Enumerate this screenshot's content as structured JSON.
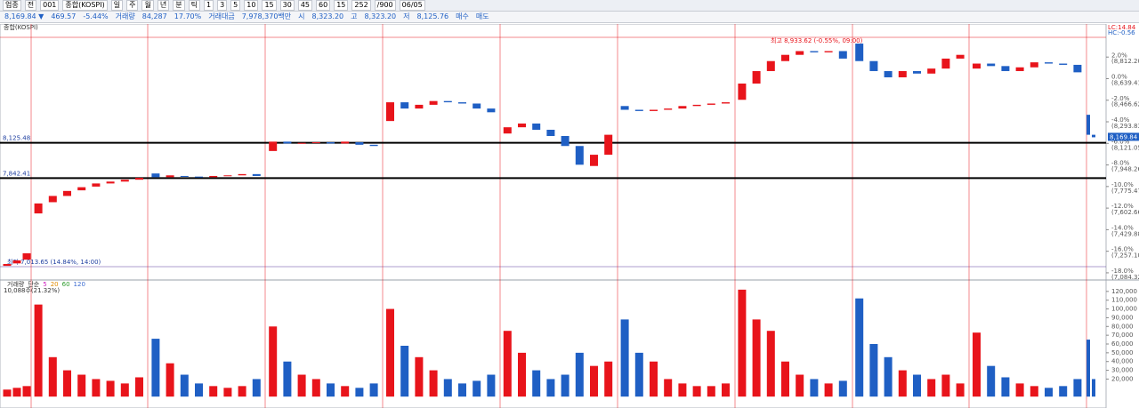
{
  "toolbar": {
    "row1": [
      "업종",
      "전",
      "001",
      "종합(KOSPI)",
      "일",
      "주",
      "월",
      "년",
      "분",
      "틱",
      "1",
      "3",
      "5",
      "10",
      "15",
      "30",
      "45",
      "60",
      "15",
      "252",
      "/900",
      "06/05"
    ],
    "row2": [
      "8,169.84 ▼",
      "469.57",
      "-5.44%",
      "거래량",
      "84,287",
      "17.70%",
      "거래대금",
      "7,978,370백만",
      "시",
      "8,323.20",
      "고",
      "8,323.20",
      "저",
      "8,125.76",
      "매수",
      "매도"
    ]
  },
  "chart_data": {
    "type": "candlestick",
    "title": "종합(KOSPI)",
    "up_color": "#e8141b",
    "down_color": "#1f5fc4",
    "open": [
      7140,
      7160,
      7190,
      7560,
      7650,
      7700,
      7745,
      7775,
      7800,
      7815,
      7830,
      7880,
      7850,
      7860,
      7855,
      7850,
      7860,
      7865,
      7875,
      8060,
      8135,
      8120,
      8125,
      8130,
      8120,
      8130,
      8110,
      8300,
      8450,
      8400,
      8430,
      8460,
      8450,
      8440,
      8400,
      8200,
      8250,
      8280,
      8230,
      8180,
      8100,
      7940,
      8030,
      8420,
      8390,
      8380,
      8390,
      8400,
      8420,
      8430,
      8440,
      8470,
      8600,
      8700,
      8780,
      8830,
      8860,
      8850,
      8860,
      8920,
      8780,
      8700,
      8650,
      8700,
      8680,
      8720,
      8800,
      8720,
      8760,
      8740,
      8700,
      8730,
      8770,
      8760,
      8750,
      8350,
      8190
    ],
    "close": [
      7155,
      7184,
      7241,
      7640,
      7700,
      7740,
      7770,
      7800,
      7815,
      7830,
      7845,
      7850,
      7865,
      7855,
      7850,
      7860,
      7865,
      7875,
      7860,
      8135,
      8120,
      8125,
      8130,
      8120,
      8135,
      8110,
      8100,
      8450,
      8400,
      8430,
      8460,
      8450,
      8440,
      8400,
      8370,
      8250,
      8280,
      8230,
      8180,
      8100,
      7950,
      8030,
      8190,
      8390,
      8380,
      8390,
      8400,
      8420,
      8430,
      8440,
      8450,
      8600,
      8700,
      8780,
      8830,
      8860,
      8850,
      8860,
      8800,
      8780,
      8700,
      8650,
      8700,
      8680,
      8720,
      8800,
      8830,
      8760,
      8740,
      8700,
      8730,
      8770,
      8760,
      8750,
      8690,
      8190,
      8169.84
    ],
    "last_label": "8,169.84",
    "ylim": [
      7034,
      9077
    ],
    "yticks": [
      {
        "value": 7084.32,
        "label": "(7,084.32)"
      },
      {
        "value": 7257.1,
        "label": "(7,257.10)"
      },
      {
        "value": 7429.88,
        "label": "(7,429.88)"
      },
      {
        "value": 7602.66,
        "label": "(7,602.66)"
      },
      {
        "value": 7775.47,
        "label": "(7,775.47)"
      },
      {
        "value": 7948.26,
        "label": "(7,948.26)"
      },
      {
        "value": 8121.05,
        "label": "(8,121.05)"
      },
      {
        "value": 8293.83,
        "label": "(8,293.83)"
      },
      {
        "value": 8466.62,
        "label": "(8,466.62)"
      },
      {
        "value": 8639.41,
        "label": "(8,639.41)"
      },
      {
        "value": 8812.2,
        "label": "(8,812.20)"
      }
    ],
    "y2lim": [
      -18.58,
      5.07
    ],
    "y2ticks": [
      {
        "value": -18,
        "label": "-18.0%"
      },
      {
        "value": -16,
        "label": "-16.0%"
      },
      {
        "value": -14,
        "label": "-14.0%"
      },
      {
        "value": -12,
        "label": "-12.0%"
      },
      {
        "value": -10,
        "label": "-10.0%"
      },
      {
        "value": -8,
        "label": "-8.0%"
      },
      {
        "value": -6,
        "label": "-6.0%"
      },
      {
        "value": -4,
        "label": "-4.0%"
      },
      {
        "value": -2,
        "label": "-2.0%"
      },
      {
        "value": 0,
        "label": "0.0%"
      },
      {
        "value": 2,
        "label": "2.0%"
      }
    ],
    "levels": [
      {
        "value": 8125.48,
        "label": "8,125.48"
      },
      {
        "value": 7842.41,
        "label": "7,842.41"
      }
    ],
    "annotations": [
      "최고 8,933.62 (-0.55%, 09:00)",
      "최저 7,013.65 (14.84%, 14:00)",
      "LC:14.84",
      "HC:-0.56"
    ],
    "volume": {
      "legend": [
        "거래량",
        "단순",
        "5",
        "20",
        "60",
        "120"
      ],
      "last": "10,088주(21.32%)",
      "values": [
        8000,
        10000,
        12000,
        105000,
        45000,
        30000,
        25000,
        20000,
        18000,
        15000,
        22000,
        66000,
        38000,
        25000,
        15000,
        12000,
        10000,
        12000,
        20000,
        80000,
        40000,
        25000,
        20000,
        15000,
        12000,
        10000,
        15000,
        100000,
        58000,
        45000,
        30000,
        20000,
        15000,
        18000,
        25000,
        75000,
        50000,
        30000,
        20000,
        25000,
        50000,
        35000,
        40000,
        88000,
        50000,
        40000,
        20000,
        15000,
        12000,
        12000,
        15000,
        122000,
        88000,
        75000,
        40000,
        25000,
        20000,
        15000,
        18000,
        112000,
        60000,
        45000,
        30000,
        25000,
        20000,
        25000,
        15000,
        73000,
        35000,
        22000,
        15000,
        12000,
        10000,
        12000,
        20000,
        65000,
        20000
      ],
      "ylim": [
        -13000,
        132000
      ],
      "yticks": [
        {
          "value": 20000,
          "label": "20,000"
        },
        {
          "value": 30000,
          "label": "30,000"
        },
        {
          "value": 40000,
          "label": "40,000"
        },
        {
          "value": 50000,
          "label": "50,000"
        },
        {
          "value": 60000,
          "label": "60,000"
        },
        {
          "value": 70000,
          "label": "70,000"
        },
        {
          "value": 80000,
          "label": "80,000"
        },
        {
          "value": 90000,
          "label": "90,000"
        },
        {
          "value": 100000,
          "label": "100,000"
        },
        {
          "value": 110000,
          "label": "110,000"
        },
        {
          "value": 120000,
          "label": "120,000"
        }
      ]
    }
  }
}
